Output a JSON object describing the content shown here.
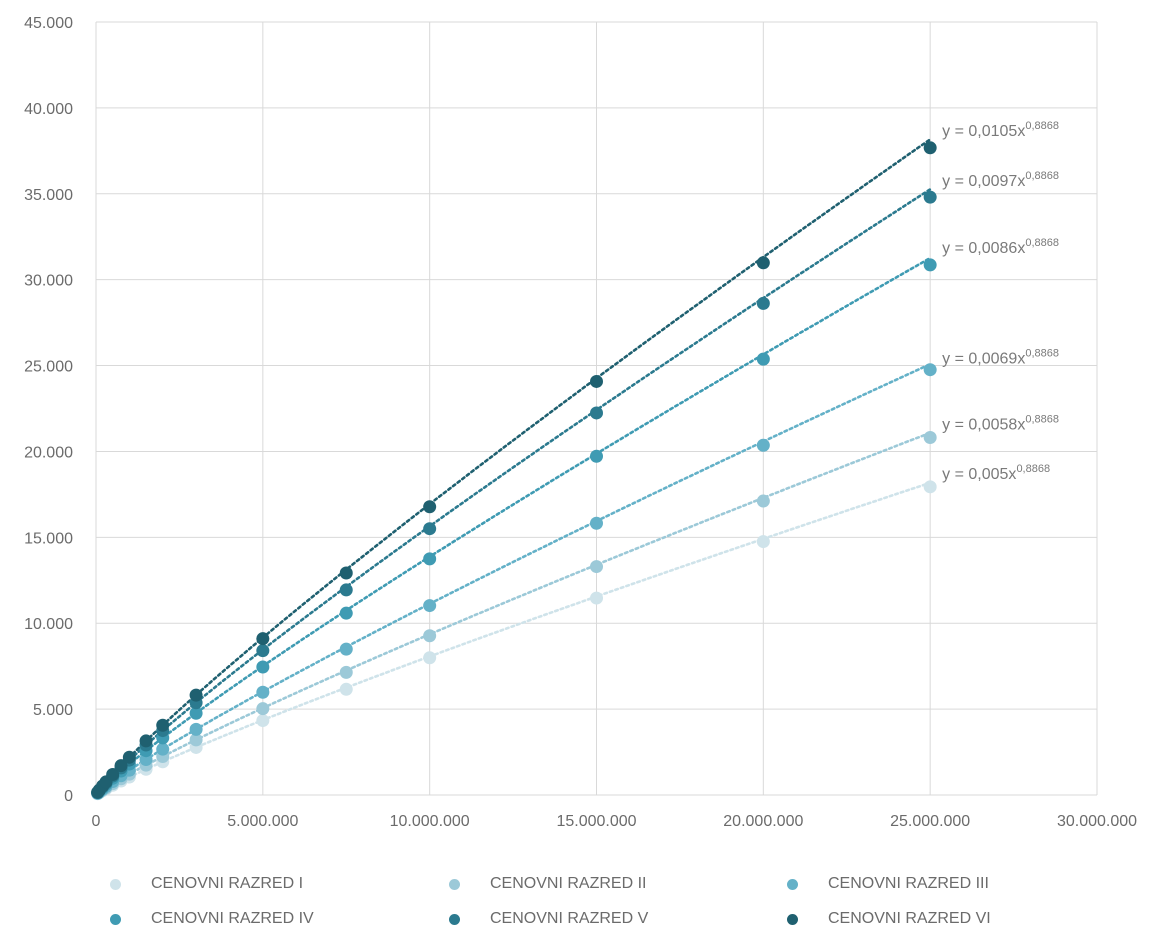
{
  "chart_data": {
    "type": "scatter",
    "title": "",
    "xlabel": "",
    "ylabel": "",
    "xlim": [
      0,
      30000000
    ],
    "ylim": [
      0,
      45000
    ],
    "x_ticks": [
      0,
      5000000,
      10000000,
      15000000,
      20000000,
      25000000,
      30000000
    ],
    "y_ticks": [
      0,
      5000,
      10000,
      15000,
      20000,
      25000,
      30000,
      35000,
      40000,
      45000
    ],
    "x_tick_labels": [
      "0",
      "5.000.000",
      "10.000.000",
      "15.000.000",
      "20.000.000",
      "25.000.000",
      "30.000.000"
    ],
    "y_tick_labels": [
      "0",
      "5.000",
      "10.000",
      "15.000",
      "20.000",
      "25.000",
      "30.000",
      "35.000",
      "40.000",
      "45.000"
    ],
    "grid": true,
    "legend_position": "bottom",
    "trendline": "power",
    "x": [
      50000,
      100000,
      200000,
      300000,
      500000,
      750000,
      1000000,
      1500000,
      2000000,
      3000000,
      5000000,
      7500000,
      10000000,
      15000000,
      20000000,
      25000000
    ],
    "series": [
      {
        "name": "CENOVNI RAZRED I",
        "color": "#cfe3ea",
        "coef": 0.005,
        "exponent": 0.8868,
        "equation": {
          "base": "y = 0,005x",
          "exp": "0,8868"
        },
        "values": [
          75,
          137,
          253,
          362,
          568,
          813,
          1048,
          1499,
          1933,
          2768,
          4333,
          6154,
          7991,
          11464,
          14753,
          17941
        ]
      },
      {
        "name": "CENOVNI RAZRED II",
        "color": "#9cc9d8",
        "coef": 0.0058,
        "exponent": 0.8868,
        "equation": {
          "base": "y = 0,0058x",
          "exp": "0,8868"
        },
        "values": [
          87,
          159,
          294,
          420,
          659,
          943,
          1216,
          1739,
          2242,
          3211,
          5026,
          7138,
          9270,
          13298,
          17113,
          20812
        ]
      },
      {
        "name": "CENOVNI RAZRED III",
        "color": "#64b1c8",
        "coef": 0.0069,
        "exponent": 0.8868,
        "equation": {
          "base": "y = 0,0069x",
          "exp": "0,8868"
        },
        "values": [
          103,
          189,
          349,
          500,
          784,
          1122,
          1446,
          2068,
          2667,
          3820,
          5980,
          8492,
          11028,
          15821,
          20359,
          24759
        ]
      },
      {
        "name": "CENOVNI RAZRED IV",
        "color": "#3f9bb3",
        "coef": 0.0086,
        "exponent": 0.8868,
        "equation": {
          "base": "y = 0,0086x",
          "exp": "0,8868"
        },
        "values": [
          128,
          235,
          435,
          623,
          977,
          1398,
          1803,
          2578,
          3325,
          4761,
          7453,
          10585,
          13745,
          19719,
          25376,
          30859
        ]
      },
      {
        "name": "CENOVNI RAZRED V",
        "color": "#2b7a8f",
        "coef": 0.0097,
        "exponent": 0.8868,
        "equation": {
          "base": "y = 0,0097x",
          "exp": "0,8868"
        },
        "values": [
          145,
          266,
          491,
          703,
          1102,
          1577,
          2033,
          2908,
          3750,
          5370,
          8406,
          11938,
          15503,
          22241,
          28621,
          34806
        ]
      },
      {
        "name": "CENOVNI RAZRED VI",
        "color": "#1f6070",
        "coef": 0.0105,
        "exponent": 0.8868,
        "equation": {
          "base": "y = 0,0105x",
          "exp": "0,8868"
        },
        "values": [
          157,
          288,
          531,
          761,
          1193,
          1707,
          2201,
          3148,
          4059,
          5813,
          9100,
          12923,
          16781,
          24075,
          30982,
          37677
        ]
      }
    ]
  }
}
